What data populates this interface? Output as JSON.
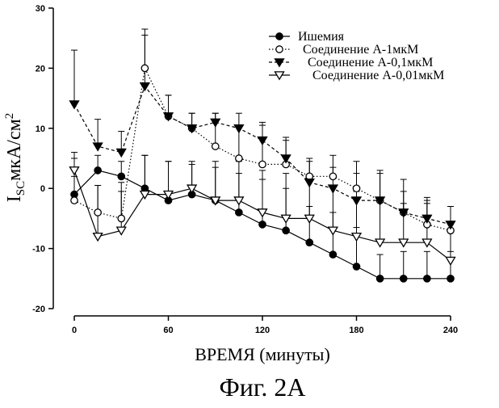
{
  "chart_data": {
    "type": "line",
    "x": [
      0,
      15,
      30,
      45,
      60,
      75,
      90,
      105,
      120,
      135,
      150,
      165,
      180,
      195,
      210,
      225,
      240
    ],
    "series": [
      {
        "name": "Ишемия",
        "marker": "filled-circle",
        "line_style": "solid",
        "values": [
          -1,
          3,
          2,
          0,
          -2,
          -1,
          -2,
          -4,
          -6,
          -7,
          -9,
          -11,
          -13,
          -15,
          -15,
          -15,
          -15
        ],
        "error_up": [
          6,
          2.5,
          2.5,
          5.5,
          6.5,
          5,
          5.5,
          6.5,
          7.5,
          7,
          6,
          7,
          6.5,
          4,
          4.5,
          4.5,
          4.5
        ]
      },
      {
        "name": "Соединение А-1мкМ",
        "marker": "open-circle",
        "line_style": "dotted",
        "values": [
          -2,
          -4,
          -5,
          20,
          12,
          10,
          7,
          5,
          4,
          4,
          2,
          2,
          0,
          -2,
          -4,
          -6,
          -7
        ],
        "error_up": [
          4,
          4.5,
          4.5,
          6.5,
          3.5,
          2.5,
          5.5,
          5.5,
          6.5,
          4,
          3,
          3.5,
          4.5,
          5,
          5.5,
          4,
          4
        ]
      },
      {
        "name": "Соединение А-0,1мкМ",
        "marker": "filled-triangle-down",
        "line_style": "dashed",
        "values": [
          14,
          7,
          6,
          17,
          12,
          10,
          11,
          10,
          8,
          5,
          1,
          0,
          -2,
          -2,
          -4,
          -5,
          -6
        ],
        "error_up": [
          9,
          4.5,
          3.5,
          8.5,
          3.5,
          2.5,
          1.5,
          2.5,
          3,
          3.5,
          3.5,
          3.5,
          4.5,
          4.5,
          3.5,
          3.5,
          3
        ]
      },
      {
        "name": "Соединение А-0,01мкМ",
        "marker": "open-triangle-down",
        "line_style": "solid",
        "values": [
          3,
          -8,
          -7,
          -1,
          -1,
          0,
          -2,
          -2,
          -4,
          -5,
          -5,
          -7,
          -8,
          -9,
          -9,
          -9,
          -12
        ],
        "error_up": [
          3,
          8.5,
          8,
          6.5,
          5.5,
          4.5,
          6.5,
          6.5,
          7,
          7.5,
          7,
          7.5,
          7.5,
          7,
          6.5,
          6.5,
          6
        ]
      }
    ],
    "x_ticks": [
      "0",
      "60",
      "120",
      "180",
      "240"
    ],
    "y_ticks": [
      "-20",
      "-10",
      "0",
      "10",
      "20",
      "30"
    ],
    "xlim": [
      0,
      240
    ],
    "ylim": [
      -20,
      30
    ],
    "xlabel": "ВРЕМЯ (минуты)",
    "ylabel_main": "I",
    "ylabel_subscript": "SC",
    "ylabel_unit": "мкА/см",
    "ylabel_superscript": "2",
    "caption": "Фиг. 2А",
    "legend_position": "top-right",
    "grid": false
  }
}
